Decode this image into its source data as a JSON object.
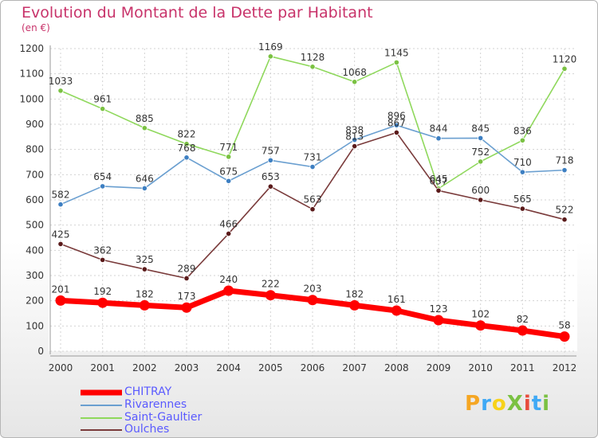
{
  "title": "Evolution du Montant de la Dette par Habitant",
  "subtitle": "(en €)",
  "logo": {
    "text": "ProXiti",
    "colors": [
      "#f5a623",
      "#3fa9f5",
      "#f7d21a",
      "#7ac142",
      "#e84c3d",
      "#3fa9f5",
      "#7ac142"
    ]
  },
  "chart_data": {
    "type": "line",
    "title": "Evolution du Montant de la Dette par Habitant",
    "ylabel": "(en €)",
    "xlabel": "",
    "x": [
      "2000",
      "2001",
      "2002",
      "2003",
      "2004",
      "2005",
      "2006",
      "2007",
      "2008",
      "2009",
      "2010",
      "2011",
      "2012"
    ],
    "ylim": [
      0,
      1200
    ],
    "yticks": [
      "0",
      "100",
      "200",
      "300",
      "400",
      "500",
      "600",
      "700",
      "800",
      "900",
      "1000",
      "1100",
      "1200"
    ],
    "grid": true,
    "legend": "bottom-left",
    "series": [
      {
        "name": "Saint-Gaultier",
        "color": "#8fd85c",
        "marker": "#7ac142",
        "values": [
          1033,
          961,
          885,
          822,
          771,
          1169,
          1128,
          1068,
          1145,
          645,
          752,
          836,
          1120
        ],
        "labels": [
          "1033",
          "961",
          "885",
          "822",
          "771",
          "1169",
          "1128",
          "1068",
          "1145",
          "645",
          "752",
          "836",
          "1120"
        ]
      },
      {
        "name": "Rivarennes",
        "color": "#6a9fd0",
        "marker": "#3d7fc2",
        "values": [
          582,
          654,
          646,
          768,
          675,
          757,
          731,
          838,
          896,
          844,
          845,
          710,
          718
        ],
        "labels": [
          "582",
          "654",
          "646",
          "768",
          "675",
          "757",
          "731",
          "838",
          "896",
          "844",
          "845",
          "710",
          "718"
        ]
      },
      {
        "name": "Oulches",
        "color": "#7a3b3b",
        "marker": "#5a1a1a",
        "values": [
          425,
          362,
          325,
          289,
          466,
          653,
          563,
          813,
          867,
          637,
          600,
          565,
          522
        ],
        "labels": [
          "425",
          "362",
          "325",
          "289",
          "466",
          "653",
          "563",
          "813",
          "867",
          "637",
          "600",
          "565",
          "522"
        ]
      },
      {
        "name": "CHITRAY",
        "color": "#ff0000",
        "marker": "#ff0000",
        "values": [
          201,
          192,
          182,
          173,
          240,
          222,
          203,
          182,
          161,
          123,
          102,
          82,
          58
        ],
        "labels": [
          "201",
          "192",
          "182",
          "173",
          "240",
          "222",
          "203",
          "182",
          "161",
          "123",
          "102",
          "82",
          "58"
        ]
      }
    ],
    "legend_entries": [
      {
        "name": "CHITRAY",
        "color": "#ff0000"
      },
      {
        "name": "Rivarennes",
        "color": "#6a9fd0"
      },
      {
        "name": "Saint-Gaultier",
        "color": "#8fd85c"
      },
      {
        "name": "Oulches",
        "color": "#7a3b3b"
      }
    ]
  }
}
